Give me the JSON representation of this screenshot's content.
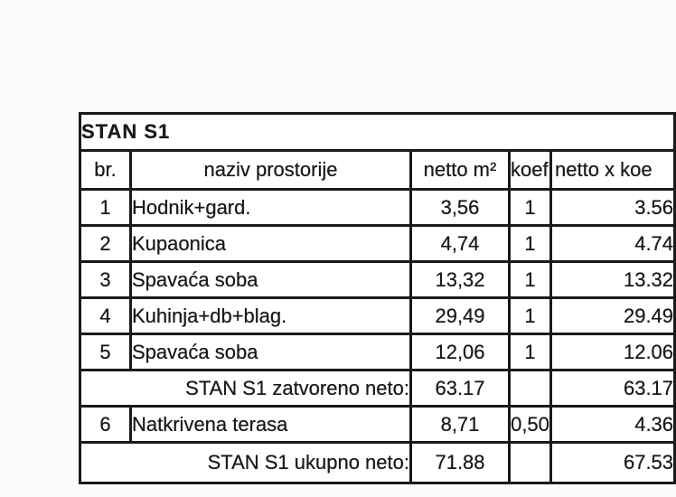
{
  "page": {
    "background_color": "#fbfbfa",
    "text_color": "#1d201e",
    "border_color": "#1f1f1f"
  },
  "table": {
    "title": "STAN S1",
    "columns": {
      "br": "br.",
      "naziv": "naziv prostorije",
      "netto": "netto m²",
      "koef": "koef.",
      "nxk": "netto x koe"
    },
    "rows": [
      {
        "br": "1",
        "naziv": "Hodnik+gard.",
        "netto": "3,56",
        "koef": "1",
        "nxk": "3.56"
      },
      {
        "br": "2",
        "naziv": "Kupaonica",
        "netto": "4,74",
        "koef": "1",
        "nxk": "4.74"
      },
      {
        "br": "3",
        "naziv": "Spavaća soba",
        "netto": "13,32",
        "koef": "1",
        "nxk": "13.32"
      },
      {
        "br": "4",
        "naziv": "Kuhinja+db+blag.",
        "netto": "29,49",
        "koef": "1",
        "nxk": "29.49"
      },
      {
        "br": "5",
        "naziv": "Spavaća soba",
        "netto": "12,06",
        "koef": "1",
        "nxk": "12.06"
      }
    ],
    "subtotal": {
      "label": "STAN S1 zatvoreno neto:",
      "netto": "63.17",
      "koef": "",
      "nxk": "63.17"
    },
    "row6": {
      "br": "6",
      "naziv": "Natkrivena terasa",
      "netto": "8,71",
      "koef": "0,50",
      "nxk": "4.36"
    },
    "total": {
      "label": "STAN S1 ukupno neto:",
      "netto": "71.88",
      "koef": "",
      "nxk": "67.53"
    }
  }
}
